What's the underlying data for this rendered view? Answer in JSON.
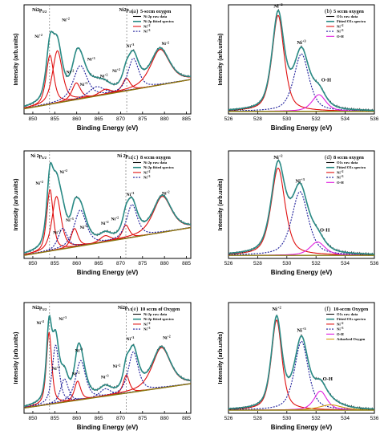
{
  "figure": {
    "background": "#ffffff"
  },
  "chart_data": [
    {
      "panel": "a",
      "type": "line",
      "tag": "(a)",
      "title": "5-sccm oxygen",
      "xlabel": "Binding Energy (eV)",
      "ylabel": "Intensity (arb.units)",
      "xlim": [
        848,
        886
      ],
      "xticks": [
        850,
        855,
        860,
        865,
        870,
        875,
        880,
        885
      ],
      "ref_lines": [
        853.8,
        871.4
      ],
      "ref_labels": [
        {
          "text": "Ni2p3/2",
          "x": 851.5
        },
        {
          "text": "Ni2p1/2",
          "x": 871.3
        }
      ],
      "legend": [
        {
          "label": "Ni 2p raw data",
          "style": "raw"
        },
        {
          "label": "Ni 2p fitted spectra",
          "style": "fit"
        },
        {
          "label": "Ni+2",
          "style": "ni2"
        },
        {
          "label": "Ni+3",
          "style": "ni3"
        }
      ],
      "background_line": {
        "x0": 848,
        "y0": 0.05,
        "x1": 886,
        "y1": 0.33
      },
      "peaks": [
        {
          "label": "Ni+2",
          "center": 853.9,
          "height": 0.47,
          "width": 1.0,
          "kind": "ni2",
          "lx": 851.3,
          "ly": 0.73
        },
        {
          "label": "Ni+2",
          "center": 855.6,
          "height": 0.5,
          "width": 1.3,
          "kind": "ni2",
          "lx": 857.5,
          "ly": 0.89
        },
        {
          "label": "Ni+3",
          "center": 860.8,
          "height": 0.32,
          "width": 1.8,
          "kind": "ni3",
          "lx": 863.3,
          "ly": 0.51
        },
        {
          "label": "Ni+2",
          "center": 859.9,
          "height": 0.16,
          "width": 1.1,
          "kind": "ni2",
          "lx": 858.5,
          "ly": 0.39
        },
        {
          "label": "Ni+3",
          "center": 864.5,
          "height": 0.09,
          "width": 2.0,
          "kind": "ni3",
          "lx": 861.6,
          "ly": 0.27
        },
        {
          "label": "Ni+2",
          "center": 866.5,
          "height": 0.05,
          "width": 1.5,
          "kind": "ni2",
          "lx": 866.2,
          "ly": 0.35
        },
        {
          "label": "Ni+2",
          "center": 871.3,
          "height": 0.12,
          "width": 1.0,
          "kind": "ni2",
          "lx": 869.0,
          "ly": 0.4
        },
        {
          "label": "Ni+3",
          "center": 872.9,
          "height": 0.3,
          "width": 1.4,
          "kind": "ni3",
          "lx": 872.2,
          "ly": 0.64
        },
        {
          "label": "Ni+2",
          "center": 879.0,
          "height": 0.34,
          "width": 2.5,
          "kind": "ni2",
          "lx": 880.2,
          "ly": 0.66
        }
      ]
    },
    {
      "panel": "b",
      "type": "line",
      "tag": "(b)",
      "title": "5 sccm oxygen",
      "xlabel": "Binding Energy (eV)",
      "ylabel": "Intensity (arb.units)",
      "xlim": [
        526,
        536
      ],
      "xticks": [
        526,
        528,
        530,
        532,
        534,
        536
      ],
      "legend": [
        {
          "label": "O1s raw data",
          "style": "raw"
        },
        {
          "label": "Fitted O1s spectra",
          "style": "fit"
        },
        {
          "label": "Ni+2",
          "style": "ni2"
        },
        {
          "label": "Ni+3",
          "style": "ni3"
        },
        {
          "label": "O-H",
          "style": "oh"
        }
      ],
      "background_line": {
        "x0": 526,
        "y0": 0.025,
        "x1": 536,
        "y1": 0.025
      },
      "peaks": [
        {
          "label": "Ni+2",
          "center": 529.4,
          "height": 0.92,
          "width": 0.48,
          "kind": "ni2",
          "lx": 529.4,
          "ly": 1.02
        },
        {
          "label": "Ni+3",
          "center": 531.0,
          "height": 0.55,
          "width": 0.6,
          "kind": "ni3",
          "lx": 531.0,
          "ly": 0.67
        },
        {
          "label": "O-H",
          "center": 532.2,
          "height": 0.16,
          "width": 0.55,
          "kind": "oh",
          "lx": 532.7,
          "ly": 0.31
        }
      ]
    },
    {
      "panel": "c",
      "type": "line",
      "tag": "(c)",
      "title": "8 sccm oxygen",
      "xlabel": "Binding Energy (eV)",
      "ylabel": "Intensity (arb.units)",
      "xlim": [
        848,
        886
      ],
      "xticks": [
        850,
        855,
        860,
        865,
        870,
        875,
        880,
        885
      ],
      "ref_lines": [
        853.8,
        871.2
      ],
      "ref_labels": [
        {
          "text": "Ni 2p3/2",
          "x": 851.3
        },
        {
          "text": "Ni 2p1/2",
          "x": 871.0
        }
      ],
      "legend": [
        {
          "label": "Ni 2p raw data",
          "style": "raw"
        },
        {
          "label": "Ni 2p fitted spectra",
          "style": "fit"
        },
        {
          "label": "Ni+2",
          "style": "ni2"
        },
        {
          "label": "Ni+3",
          "style": "ni3"
        }
      ],
      "background_line": {
        "x0": 848,
        "y0": 0.03,
        "x1": 886,
        "y1": 0.3
      },
      "peaks": [
        {
          "label": "Ni+2",
          "center": 853.9,
          "height": 0.6,
          "width": 0.85,
          "kind": "ni2",
          "lx": 851.5,
          "ly": 0.72
        },
        {
          "label": "Ni+2",
          "center": 855.4,
          "height": 0.52,
          "width": 1.2,
          "kind": "ni2",
          "lx": 857.0,
          "ly": 0.83
        },
        {
          "label": "Ni+3",
          "center": 860.8,
          "height": 0.35,
          "width": 1.6,
          "kind": "ni3",
          "lx": 858.4,
          "ly": 0.36
        },
        {
          "label": "Ni+2",
          "center": 859.5,
          "height": 0.18,
          "width": 0.9,
          "kind": "ni2",
          "lx": 861.6,
          "ly": 0.29
        },
        {
          "label": "Ni+3",
          "center": 856.8,
          "height": 0.2,
          "width": 1.2,
          "kind": "ni3",
          "lx": 855.5,
          "ly": 0.24
        },
        {
          "label": "Ni+2",
          "center": 866.5,
          "height": 0.06,
          "width": 1.4,
          "kind": "ni2",
          "lx": 866.4,
          "ly": 0.33
        },
        {
          "label": "Ni+2",
          "center": 871.2,
          "height": 0.13,
          "width": 0.9,
          "kind": "ni2",
          "lx": 868.7,
          "ly": 0.37
        },
        {
          "label": "Ni+3",
          "center": 872.6,
          "height": 0.32,
          "width": 1.4,
          "kind": "ni3",
          "lx": 872.2,
          "ly": 0.61
        },
        {
          "label": "Ni+2",
          "center": 879.5,
          "height": 0.35,
          "width": 2.4,
          "kind": "ni2",
          "lx": 880.3,
          "ly": 0.62
        }
      ]
    },
    {
      "panel": "d",
      "type": "line",
      "tag": "(d)",
      "title": "8 sccm oxygen",
      "xlabel": "Binding Energy (eV)",
      "ylabel": "Intensity (arb.units)",
      "xlim": [
        526,
        536
      ],
      "xticks": [
        526,
        528,
        530,
        532,
        534,
        536
      ],
      "legend": [
        {
          "label": "O1s raw data",
          "style": "raw"
        },
        {
          "label": "Fitted O1s spectra",
          "style": "fit"
        },
        {
          "label": "Ni+2",
          "style": "ni2"
        },
        {
          "label": "Ni+3",
          "style": "ni3"
        },
        {
          "label": "O-H",
          "style": "oh"
        }
      ],
      "background_line": {
        "x0": 526,
        "y0": 0.03,
        "x1": 536,
        "y1": 0.03
      },
      "peaks": [
        {
          "label": "Ni+2",
          "center": 529.4,
          "height": 0.85,
          "width": 0.55,
          "kind": "ni2",
          "lx": 529.4,
          "ly": 0.97
        },
        {
          "label": "Ni+3",
          "center": 530.9,
          "height": 0.62,
          "width": 0.65,
          "kind": "ni3",
          "lx": 530.9,
          "ly": 0.74
        },
        {
          "label": "O-H",
          "center": 532.1,
          "height": 0.13,
          "width": 0.6,
          "kind": "oh",
          "lx": 532.6,
          "ly": 0.26
        }
      ]
    },
    {
      "panel": "e",
      "type": "line",
      "tag": "(e)",
      "title": "10 sccm of Oxygen",
      "xlabel": "Binding Energy (eV)",
      "ylabel": "Intensity (arb.units)",
      "xlim": [
        848,
        886
      ],
      "xticks": [
        850,
        855,
        860,
        865,
        870,
        875,
        880,
        885
      ],
      "ref_lines": [
        853.8,
        871.3
      ],
      "ref_labels": [
        {
          "text": "Ni2p3/2",
          "x": 851.5
        },
        {
          "text": "Ni2p1/2",
          "x": 871.0
        }
      ],
      "legend": [
        {
          "label": "Ni 2p raw data",
          "style": "raw"
        },
        {
          "label": "Ni 2p fitted spectra",
          "style": "fit"
        },
        {
          "label": "Ni+2",
          "style": "ni2"
        },
        {
          "label": "Ni+3",
          "style": "ni3"
        }
      ],
      "background_line": {
        "x0": 848,
        "y0": 0.05,
        "x1": 886,
        "y1": 0.28
      },
      "peaks": [
        {
          "label": "Ni+2",
          "center": 853.7,
          "height": 0.68,
          "width": 0.7,
          "kind": "ni2",
          "lx": 851.7,
          "ly": 0.84
        },
        {
          "label": "Ni+3",
          "center": 855.2,
          "height": 0.55,
          "width": 0.9,
          "kind": "ni3",
          "lx": 856.8,
          "ly": 0.88
        },
        {
          "label": "Ni+3",
          "center": 857.2,
          "height": 0.22,
          "width": 1.0,
          "kind": "ni3",
          "lx": 855.3,
          "ly": 0.41
        },
        {
          "label": "Ni+3",
          "center": 860.9,
          "height": 0.37,
          "width": 1.3,
          "kind": "ni3",
          "lx": 860.5,
          "ly": 0.58
        },
        {
          "label": "Ni+2",
          "center": 860.2,
          "height": 0.18,
          "width": 0.8,
          "kind": "ni2",
          "lx": 859.8,
          "ly": 0.36
        },
        {
          "label": "Ni+3",
          "center": 866.5,
          "height": 0.07,
          "width": 1.4,
          "kind": "ni3",
          "lx": 866.4,
          "ly": 0.33
        },
        {
          "label": "Ni+2",
          "center": 871.3,
          "height": 0.17,
          "width": 0.8,
          "kind": "ni2",
          "lx": 869.1,
          "ly": 0.43
        },
        {
          "label": "Ni+3",
          "center": 872.9,
          "height": 0.38,
          "width": 1.3,
          "kind": "ni3",
          "lx": 872.2,
          "ly": 0.69
        },
        {
          "label": "Ni+2",
          "center": 879.3,
          "height": 0.38,
          "width": 2.4,
          "kind": "ni2",
          "lx": 880.5,
          "ly": 0.7
        }
      ]
    },
    {
      "panel": "f",
      "type": "line",
      "tag": "(f)",
      "title": "10-sccm Oxygen",
      "xlabel": "Binding Energy (eV)",
      "ylabel": "Intensity (arb.units)",
      "xlim": [
        526,
        536
      ],
      "xticks": [
        526,
        528,
        530,
        532,
        534,
        536
      ],
      "legend": [
        {
          "label": "O1s raw data",
          "style": "raw"
        },
        {
          "label": "Fitted O1s spectra",
          "style": "fit"
        },
        {
          "label": "Ni+2",
          "style": "ni2"
        },
        {
          "label": "Ni+3",
          "style": "ni3"
        },
        {
          "label": "O-H",
          "style": "oh"
        },
        {
          "label": "Adsorbed Oxygen",
          "style": "ads"
        }
      ],
      "background_line": {
        "x0": 526,
        "y0": 0.03,
        "x1": 536,
        "y1": 0.03
      },
      "peaks": [
        {
          "label": "Ni+2",
          "center": 529.3,
          "height": 0.85,
          "width": 0.42,
          "kind": "ni2",
          "lx": 529.3,
          "ly": 0.97
        },
        {
          "label": "Ni+3",
          "center": 531.0,
          "height": 0.65,
          "width": 0.55,
          "kind": "ni3",
          "lx": 531.0,
          "ly": 0.77
        },
        {
          "label": "O-H",
          "center": 532.3,
          "height": 0.18,
          "width": 0.5,
          "kind": "oh",
          "lx": 532.8,
          "ly": 0.31
        },
        {
          "label": "",
          "center": 533.0,
          "height": 0.05,
          "width": 0.9,
          "kind": "ads",
          "lx": 533.0,
          "ly": 0.0
        }
      ]
    }
  ],
  "colors": {
    "raw": "#111111",
    "fit": "#2a8b86",
    "ni2": "#e01010",
    "ni3": "#1c1c9a",
    "oh": "#e020e0",
    "ads": "#d49a12",
    "bg": "#8a7b12",
    "ref": "#888888"
  }
}
